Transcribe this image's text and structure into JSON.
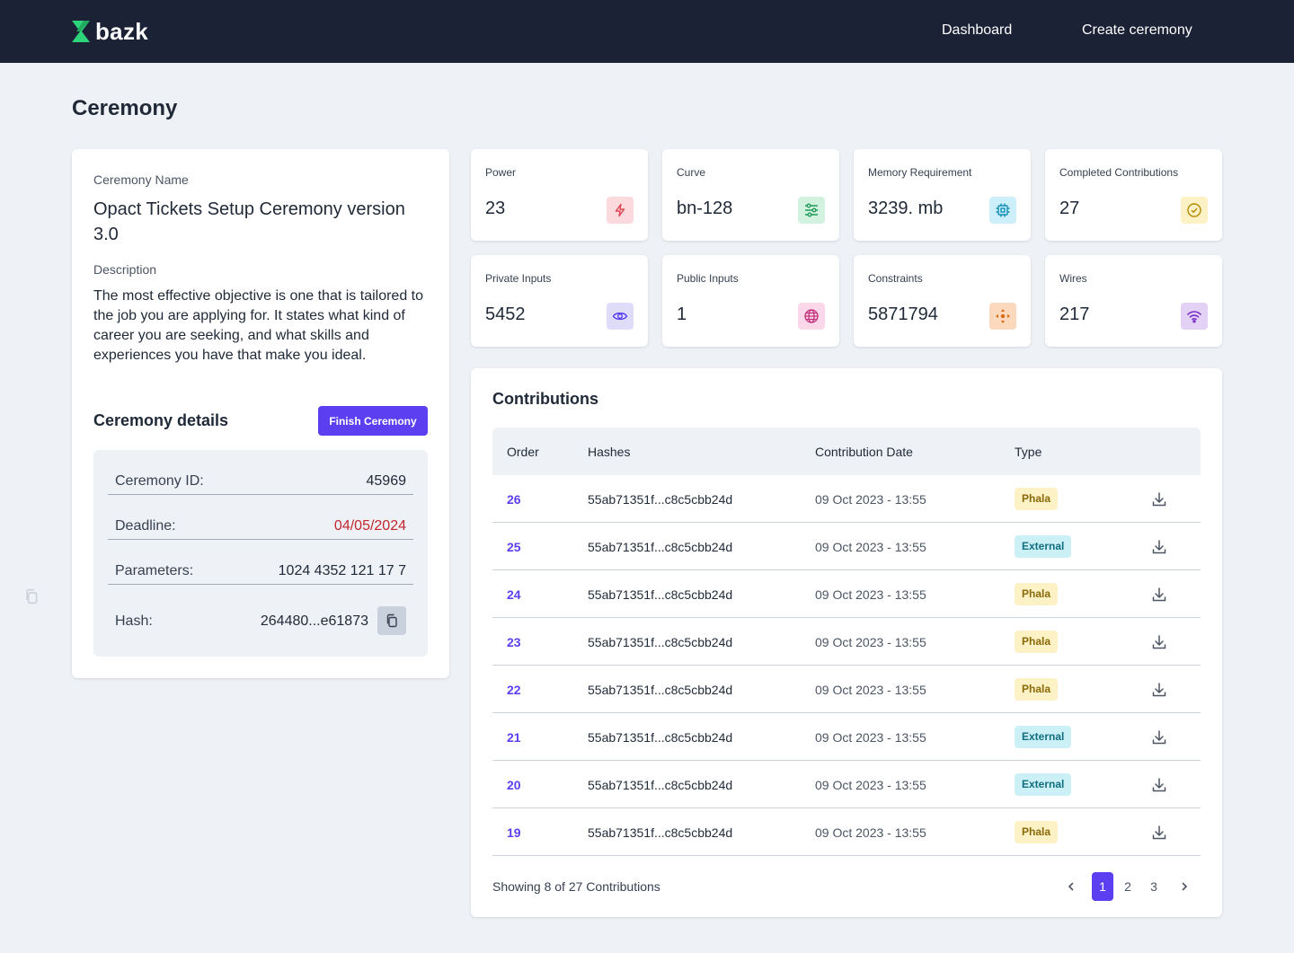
{
  "header": {
    "brand": "bazk",
    "nav": [
      "Dashboard",
      "Create ceremony"
    ]
  },
  "page_title": "Ceremony",
  "ceremony": {
    "name_label": "Ceremony Name",
    "name": "Opact Tickets Setup Ceremony version 3.0",
    "description_label": "Description",
    "description": "The most effective objective is one that is tailored to the job you are applying for. It states what kind of career you are seeking, and what skills and experiences you have that make you ideal.",
    "details_title": "Ceremony details",
    "finish_label": "Finish Ceremony",
    "details": {
      "id_label": "Ceremony ID:",
      "id": "45969",
      "deadline_label": "Deadline:",
      "deadline": "04/05/2024",
      "params_label": "Parameters:",
      "params": "1024 4352 121 17 7",
      "hash_label": "Hash:",
      "hash": "264480...e61873"
    }
  },
  "stats": {
    "power": {
      "label": "Power",
      "value": "23",
      "icon": "lightning-icon",
      "bg": "#fbd9dc",
      "fg": "#e04455"
    },
    "curve": {
      "label": "Curve",
      "value": "bn-128",
      "icon": "sliders-icon",
      "bg": "#d3f1df",
      "fg": "#1f9a5a"
    },
    "memory": {
      "label": "Memory Requirement",
      "value": "3239. mb",
      "icon": "chip-icon",
      "bg": "#cdeffa",
      "fg": "#0f8fb3"
    },
    "completed": {
      "label": "Completed Contributions",
      "value": "27",
      "icon": "check-circle-icon",
      "bg": "#fdf2c6",
      "fg": "#b58a08"
    },
    "private": {
      "label": "Private Inputs",
      "value": "5452",
      "icon": "eye-icon",
      "bg": "#dfdcfa",
      "fg": "#5b3ff0"
    },
    "public": {
      "label": "Public Inputs",
      "value": "1",
      "icon": "globe-icon",
      "bg": "#fbd7ea",
      "fg": "#c2307a"
    },
    "constraints": {
      "label": "Constraints",
      "value": "5871794",
      "icon": "move-icon",
      "bg": "#fcd9bd",
      "fg": "#d86a10"
    },
    "wires": {
      "label": "Wires",
      "value": "217",
      "icon": "wifi-icon",
      "bg": "#e3d2f6",
      "fg": "#7a2fc4"
    }
  },
  "contributions": {
    "title": "Contributions",
    "columns": [
      "Order",
      "Hashes",
      "Contribution Date",
      "Type"
    ],
    "rows": [
      {
        "order": "26",
        "hash": "55ab71351f...c8c5cbb24d",
        "date": "09 Oct 2023 - 13:55",
        "type": "Phala"
      },
      {
        "order": "25",
        "hash": "55ab71351f...c8c5cbb24d",
        "date": "09 Oct 2023 - 13:55",
        "type": "External"
      },
      {
        "order": "24",
        "hash": "55ab71351f...c8c5cbb24d",
        "date": "09 Oct 2023 - 13:55",
        "type": "Phala"
      },
      {
        "order": "23",
        "hash": "55ab71351f...c8c5cbb24d",
        "date": "09 Oct 2023 - 13:55",
        "type": "Phala"
      },
      {
        "order": "22",
        "hash": "55ab71351f...c8c5cbb24d",
        "date": "09 Oct 2023 - 13:55",
        "type": "Phala"
      },
      {
        "order": "21",
        "hash": "55ab71351f...c8c5cbb24d",
        "date": "09 Oct 2023 - 13:55",
        "type": "External"
      },
      {
        "order": "20",
        "hash": "55ab71351f...c8c5cbb24d",
        "date": "09 Oct 2023 - 13:55",
        "type": "External"
      },
      {
        "order": "19",
        "hash": "55ab71351f...c8c5cbb24d",
        "date": "09 Oct 2023 - 13:55",
        "type": "Phala"
      }
    ],
    "showing": "Showing 8 of 27 Contributions",
    "pages": [
      "1",
      "2",
      "3"
    ],
    "current_page": "1"
  }
}
